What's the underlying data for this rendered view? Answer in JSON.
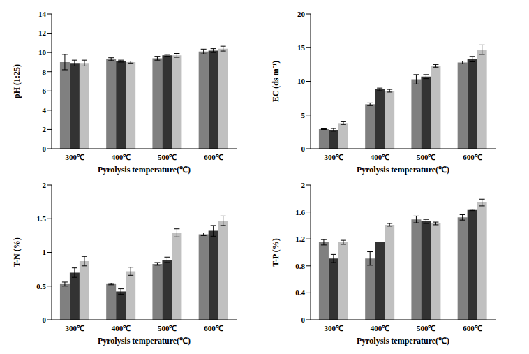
{
  "chart_data": [
    {
      "type": "bar",
      "xlabel": "Pyrolysis temperature(℃)",
      "ylabel": "pH (1:25)",
      "categories": [
        "300℃",
        "400℃",
        "500℃",
        "600℃"
      ],
      "series": [
        {
          "color": "#808080",
          "values": [
            9.0,
            9.3,
            9.4,
            10.1
          ],
          "errors": [
            0.8,
            0.15,
            0.2,
            0.25
          ]
        },
        {
          "color": "#333333",
          "values": [
            8.9,
            9.1,
            9.7,
            10.2
          ],
          "errors": [
            0.3,
            0.1,
            0.1,
            0.2
          ]
        },
        {
          "color": "#c0c0c0",
          "values": [
            8.9,
            9.0,
            9.7,
            10.4
          ],
          "errors": [
            0.3,
            0.1,
            0.2,
            0.25
          ]
        }
      ],
      "ylim": [
        0,
        14
      ],
      "yticks": [
        0,
        2,
        4,
        6,
        8,
        10,
        12,
        14
      ]
    },
    {
      "type": "bar",
      "xlabel": "Pyrolysis temperature(℃)",
      "ylabel": "EC (ds m⁻¹)",
      "categories": [
        "300℃",
        "400℃",
        "500℃",
        "600℃"
      ],
      "series": [
        {
          "color": "#808080",
          "values": [
            2.9,
            6.6,
            10.3,
            12.8
          ],
          "errors": [
            0.05,
            0.2,
            0.7,
            0.2
          ]
        },
        {
          "color": "#333333",
          "values": [
            2.8,
            8.8,
            10.7,
            13.3
          ],
          "errors": [
            0.2,
            0.2,
            0.3,
            0.4
          ]
        },
        {
          "color": "#c0c0c0",
          "values": [
            3.8,
            8.6,
            12.3,
            14.7
          ],
          "errors": [
            0.2,
            0.2,
            0.2,
            0.7
          ]
        }
      ],
      "ylim": [
        0,
        20
      ],
      "yticks": [
        0,
        5,
        10,
        15,
        20
      ]
    },
    {
      "type": "bar",
      "xlabel": "Pyrolysis temperature(℃)",
      "ylabel": "T-N (%)",
      "categories": [
        "300℃",
        "400℃",
        "500℃",
        "600℃"
      ],
      "series": [
        {
          "color": "#808080",
          "values": [
            0.53,
            0.53,
            0.83,
            1.27
          ],
          "errors": [
            0.03,
            0.01,
            0.02,
            0.02
          ]
        },
        {
          "color": "#333333",
          "values": [
            0.7,
            0.42,
            0.89,
            1.32
          ],
          "errors": [
            0.07,
            0.04,
            0.04,
            0.08
          ]
        },
        {
          "color": "#c0c0c0",
          "values": [
            0.87,
            0.72,
            1.29,
            1.47
          ],
          "errors": [
            0.07,
            0.06,
            0.06,
            0.07
          ]
        }
      ],
      "ylim": [
        0,
        2
      ],
      "yticks": [
        0,
        0.5,
        1,
        1.5,
        2
      ]
    },
    {
      "type": "bar",
      "xlabel": "Pyrolysis temperature(℃)",
      "ylabel": "T-P (%)",
      "categories": [
        "300℃",
        "400℃",
        "500℃",
        "600℃"
      ],
      "series": [
        {
          "color": "#808080",
          "values": [
            1.15,
            0.91,
            1.49,
            1.52
          ],
          "errors": [
            0.04,
            0.1,
            0.05,
            0.04
          ]
        },
        {
          "color": "#333333",
          "values": [
            0.91,
            1.15,
            1.46,
            1.63
          ],
          "errors": [
            0.06,
            0,
            0.03,
            0.01
          ]
        },
        {
          "color": "#c0c0c0",
          "values": [
            1.15,
            1.41,
            1.43,
            1.74
          ],
          "errors": [
            0.03,
            0.02,
            0.02,
            0.05
          ]
        }
      ],
      "ylim": [
        0,
        2
      ],
      "yticks": [
        0,
        0.4,
        0.8,
        1.2,
        1.6,
        2
      ]
    }
  ]
}
